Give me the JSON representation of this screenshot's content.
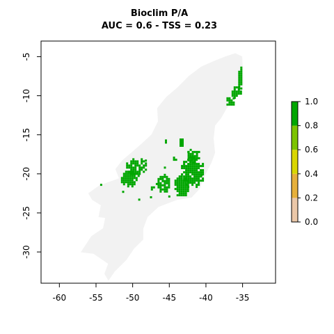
{
  "chart_data": {
    "type": "heatmap",
    "title": "Bioclim P/A",
    "subtitle": "AUC = 0.6 - TSS = 0.23",
    "xlabel": "",
    "ylabel": "",
    "xlim": [
      -62.5,
      -30.5
    ],
    "ylim": [
      -34,
      -3
    ],
    "x_ticks": [
      -60,
      -55,
      -50,
      -45,
      -40,
      -35
    ],
    "y_ticks": [
      -5,
      -10,
      -15,
      -20,
      -25,
      -30
    ],
    "legend": {
      "position": "right",
      "ticks": [
        0.0,
        0.2,
        0.4,
        0.6,
        0.8,
        1.0
      ],
      "tick_labels": [
        "0.0",
        "0.2",
        "0.4",
        "0.6",
        "0.8",
        "1.0"
      ],
      "colors": [
        "#f2f2f2",
        "#eac7a8",
        "#e6b03b",
        "#d9d600",
        "#7cc400",
        "#00a600"
      ]
    },
    "background_region": [
      [
        -35.1,
        -5.0
      ],
      [
        -35.0,
        -7.0
      ],
      [
        -34.9,
        -8.4
      ],
      [
        -35.3,
        -9.6
      ],
      [
        -36.3,
        -10.6
      ],
      [
        -37.2,
        -11.6
      ],
      [
        -38.0,
        -12.9
      ],
      [
        -38.8,
        -13.8
      ],
      [
        -39.0,
        -15.5
      ],
      [
        -38.8,
        -17.3
      ],
      [
        -39.3,
        -18.6
      ],
      [
        -40.3,
        -20.4
      ],
      [
        -40.9,
        -21.9
      ],
      [
        -42.0,
        -23.0
      ],
      [
        -44.0,
        -23.3
      ],
      [
        -46.5,
        -24.2
      ],
      [
        -48.0,
        -25.5
      ],
      [
        -48.6,
        -27.0
      ],
      [
        -48.6,
        -28.4
      ],
      [
        -49.8,
        -29.5
      ],
      [
        -50.9,
        -31.0
      ],
      [
        -52.5,
        -32.5
      ],
      [
        -53.3,
        -33.6
      ],
      [
        -53.8,
        -32.8
      ],
      [
        -53.3,
        -31.5
      ],
      [
        -55.3,
        -30.2
      ],
      [
        -57.0,
        -30.0
      ],
      [
        -55.6,
        -28.0
      ],
      [
        -54.0,
        -27.0
      ],
      [
        -53.7,
        -25.6
      ],
      [
        -54.6,
        -25.5
      ],
      [
        -54.3,
        -24.0
      ],
      [
        -55.5,
        -23.3
      ],
      [
        -56.0,
        -22.5
      ],
      [
        -54.5,
        -21.5
      ],
      [
        -51.8,
        -20.6
      ],
      [
        -52.3,
        -19.4
      ],
      [
        -51.4,
        -18.3
      ],
      [
        -50.0,
        -17.2
      ],
      [
        -48.8,
        -16.2
      ],
      [
        -47.4,
        -15.0
      ],
      [
        -46.5,
        -13.3
      ],
      [
        -46.6,
        -11.6
      ],
      [
        -45.4,
        -10.2
      ],
      [
        -43.9,
        -9.0
      ],
      [
        -42.3,
        -7.5
      ],
      [
        -40.6,
        -6.3
      ],
      [
        -38.9,
        -5.6
      ],
      [
        -37.3,
        -5.0
      ],
      [
        -36.0,
        -4.6
      ]
    ],
    "presence_clusters": [
      {
        "x_range": [
          -35.6,
          -35.0
        ],
        "y_range": [
          -9.3,
          -6.0
        ],
        "value": 1.0
      },
      {
        "x_range": [
          -36.5,
          -35.2
        ],
        "y_range": [
          -10.3,
          -8.8
        ],
        "value": 1.0
      },
      {
        "x_range": [
          -37.2,
          -36.0
        ],
        "y_range": [
          -11.3,
          -10.2
        ],
        "value": 1.0
      },
      {
        "x_range": [
          -43.4,
          -40.2
        ],
        "y_range": [
          -21.8,
          -17.8
        ],
        "value": 1.0
      },
      {
        "x_range": [
          -42.5,
          -40.8
        ],
        "y_range": [
          -18.6,
          -16.8
        ],
        "value": 1.0
      },
      {
        "x_range": [
          -44.3,
          -42.3
        ],
        "y_range": [
          -23.0,
          -20.2
        ],
        "value": 1.0
      },
      {
        "x_range": [
          -46.6,
          -44.9
        ],
        "y_range": [
          -22.4,
          -20.0
        ],
        "value": 1.0
      },
      {
        "x_range": [
          -51.6,
          -49.0
        ],
        "y_range": [
          -21.6,
          -19.6
        ],
        "value": 1.0
      },
      {
        "x_range": [
          -50.9,
          -48.0
        ],
        "y_range": [
          -20.2,
          -18.0
        ],
        "value": 1.0
      },
      {
        "x_range": [
          -43.6,
          -43.0
        ],
        "y_range": [
          -16.6,
          -15.2
        ],
        "value": 1.0
      },
      {
        "x_range": [
          -45.6,
          -45.2
        ],
        "y_range": [
          -16.2,
          -15.6
        ],
        "value": 1.0
      },
      {
        "x_range": [
          -47.8,
          -46.8
        ],
        "y_range": [
          -22.2,
          -21.6
        ],
        "value": 1.0
      },
      {
        "x_range": [
          -44.5,
          -44.0
        ],
        "y_range": [
          -18.4,
          -17.8
        ],
        "value": 1.0
      }
    ],
    "presence_points": [
      [
        -54.3,
        -21.4
      ],
      [
        -51.3,
        -22.3
      ],
      [
        -49.1,
        -23.3
      ],
      [
        -46.7,
        -21.3
      ],
      [
        -45.0,
        -22.9
      ],
      [
        -42.4,
        -17.2
      ],
      [
        -40.6,
        -20.2
      ],
      [
        -45.6,
        -19.2
      ],
      [
        -48.2,
        -18.3
      ],
      [
        -47.5,
        -23.0
      ]
    ]
  }
}
